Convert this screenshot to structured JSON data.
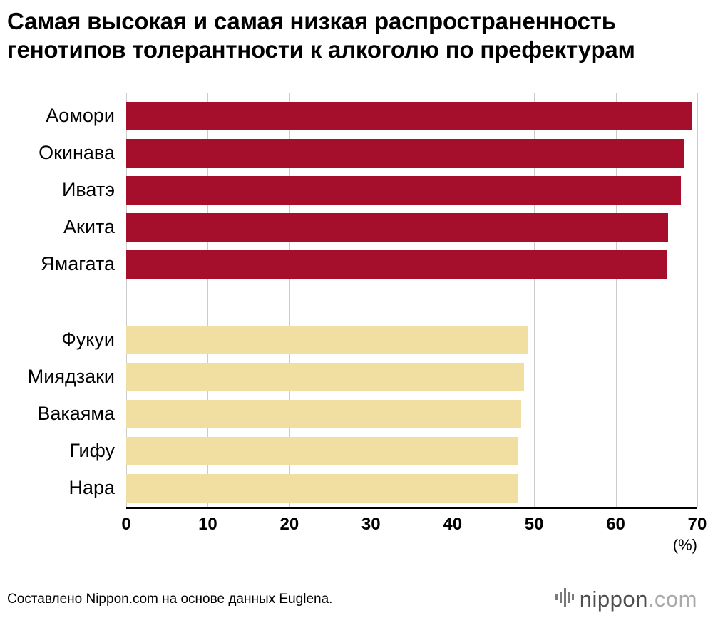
{
  "title": "Самая высокая и самая низкая распространенность генотипов толерантности к алкоголю по префектурам",
  "chart_data": {
    "type": "bar",
    "orientation": "horizontal",
    "title": "Самая высокая и самая низкая распространенность генотипов толерантности к алкоголю по префектурам",
    "xlabel": "(%)",
    "xlim": [
      0,
      70
    ],
    "ticks": [
      0,
      10,
      20,
      30,
      40,
      50,
      60,
      70
    ],
    "grid": true,
    "groups": [
      {
        "name": "highest",
        "color": "#A50F2B",
        "items": [
          {
            "label": "Аомори",
            "value": 69.3
          },
          {
            "label": "Окинава",
            "value": 68.4
          },
          {
            "label": "Иватэ",
            "value": 68.0
          },
          {
            "label": "Акита",
            "value": 66.4
          },
          {
            "label": "Ямагата",
            "value": 66.3
          }
        ]
      },
      {
        "name": "lowest",
        "color": "#F0DFA1",
        "items": [
          {
            "label": "Фукуи",
            "value": 49.2
          },
          {
            "label": "Миядзаки",
            "value": 48.8
          },
          {
            "label": "Вакаяма",
            "value": 48.4
          },
          {
            "label": "Гифу",
            "value": 48.0
          },
          {
            "label": "Нара",
            "value": 48.0
          }
        ]
      }
    ]
  },
  "footer": {
    "source": "Составлено Nippon.com на основе данных Euglena.",
    "logo": {
      "name": "nippon",
      "domain": ".com"
    }
  }
}
